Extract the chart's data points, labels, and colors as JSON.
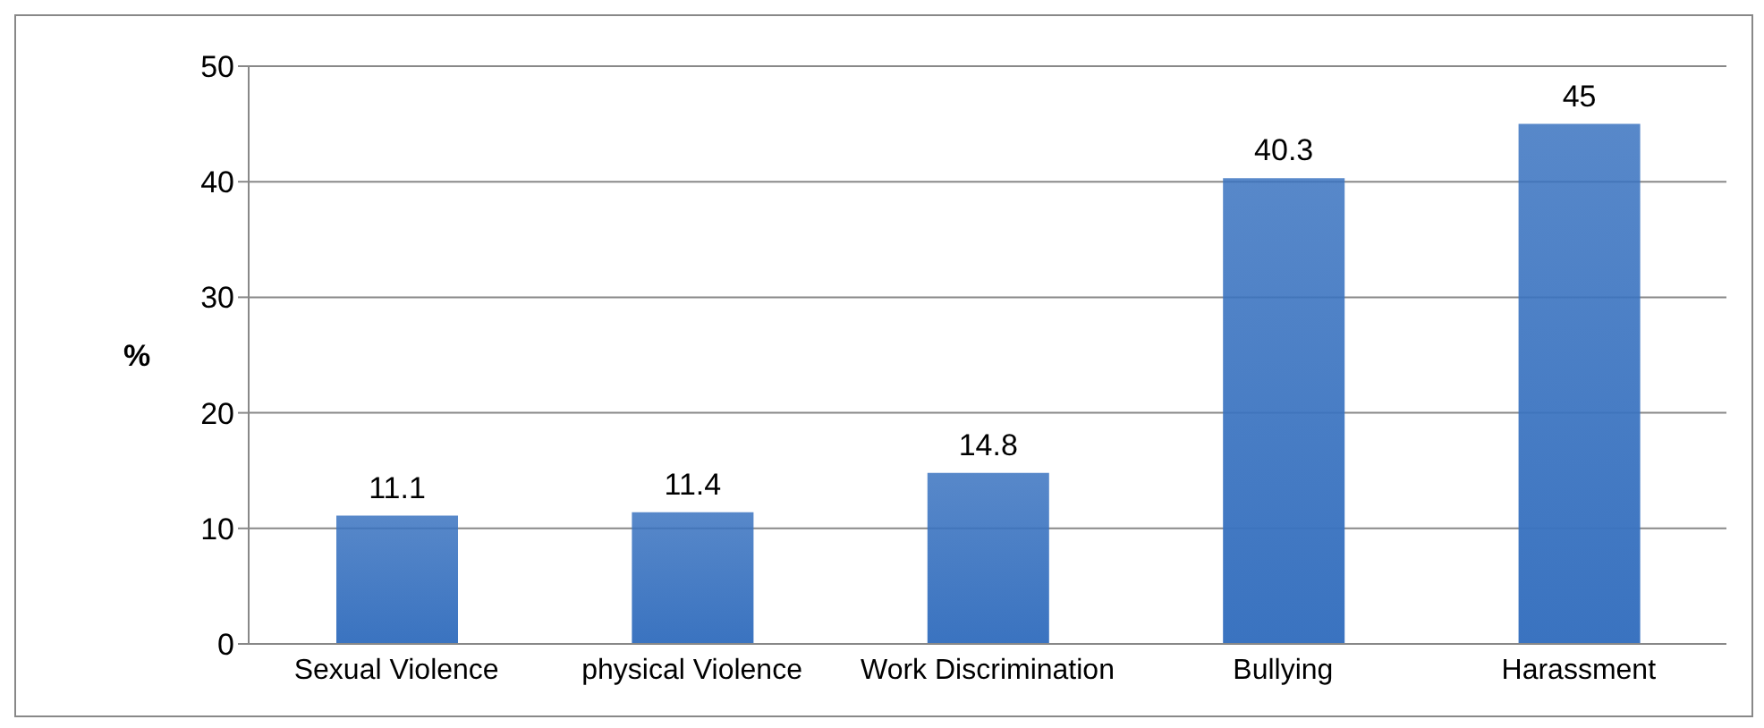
{
  "chart_data": {
    "type": "bar",
    "ylabel": "%",
    "categories": [
      "Sexual Violence",
      "physical Violence",
      "Work Discrimination",
      "Bullying",
      "Harassment"
    ],
    "values": [
      11.1,
      11.4,
      14.8,
      40.3,
      45
    ],
    "color": "#3a73c0",
    "ylim": [
      0,
      50
    ],
    "yticks": [
      0,
      10,
      20,
      30,
      40,
      50
    ],
    "grid": "y",
    "data_labels": true
  }
}
